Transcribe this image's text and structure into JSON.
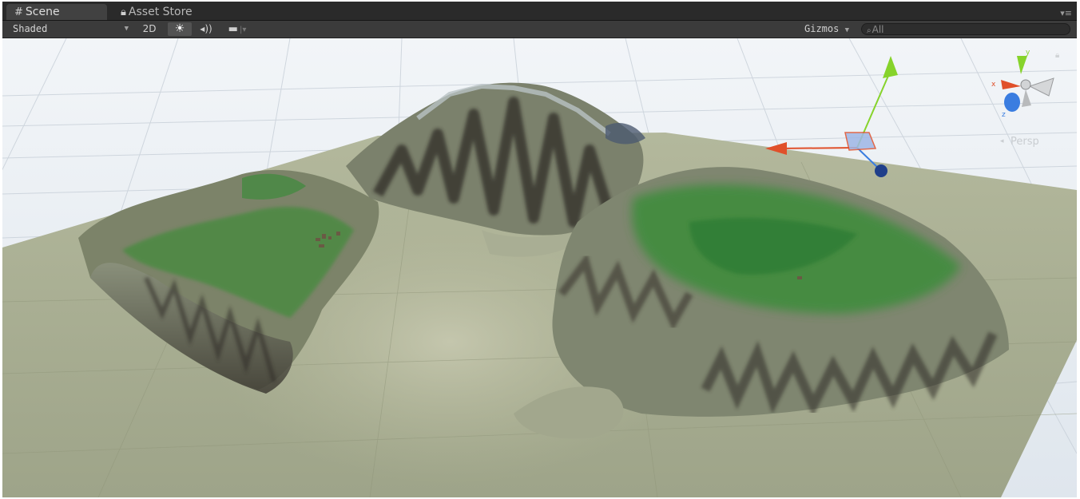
{
  "tabs": [
    {
      "label": "Scene",
      "icon": "hash-grid-icon",
      "active": true
    },
    {
      "label": "Asset Store",
      "icon": "lock-icon",
      "active": false
    }
  ],
  "toolbar": {
    "shading_mode": "Shaded",
    "toggle_2d": "2D",
    "lighting_glyph": "☀",
    "audio_glyph": "◂))",
    "effects_glyph": "▬",
    "gizmos_label": "Gizmos",
    "search_value": "All",
    "search_glyph": "⌕"
  },
  "viewport": {
    "projection_label": "Persp",
    "axis_labels": {
      "y": "y",
      "x": "x",
      "z": "z"
    }
  },
  "colors": {
    "editor_bg": "#1c1c1c",
    "toolbar_bg": "#3b3b3b",
    "terrain_base": "#aab092",
    "vegetation": "#3d8a3c",
    "gizmo_x": "#e0502a",
    "gizmo_y": "#86d32b",
    "gizmo_z": "#3a7de0",
    "sky": "#eef2f6"
  }
}
